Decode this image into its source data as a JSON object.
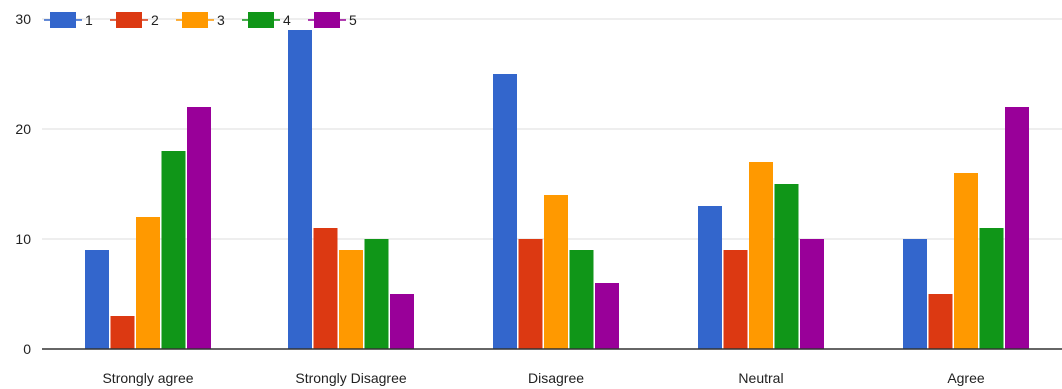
{
  "chart_data": {
    "type": "bar",
    "categories": [
      "Strongly agree",
      "Strongly Disagree",
      "Disagree",
      "Neutral",
      "Agree"
    ],
    "series": [
      {
        "name": "1",
        "color": "#3366cc",
        "values": [
          9,
          29,
          25,
          13,
          10
        ]
      },
      {
        "name": "2",
        "color": "#dc3912",
        "values": [
          3,
          11,
          10,
          9,
          5
        ]
      },
      {
        "name": "3",
        "color": "#ff9900",
        "values": [
          12,
          9,
          14,
          17,
          16
        ]
      },
      {
        "name": "4",
        "color": "#109618",
        "values": [
          18,
          10,
          9,
          15,
          11
        ]
      },
      {
        "name": "5",
        "color": "#990099",
        "values": [
          22,
          5,
          6,
          10,
          22
        ]
      }
    ],
    "y_ticks": [
      0,
      10,
      20,
      30
    ],
    "ylim": [
      0,
      30
    ],
    "grid": true,
    "legend_position": "top-left"
  }
}
